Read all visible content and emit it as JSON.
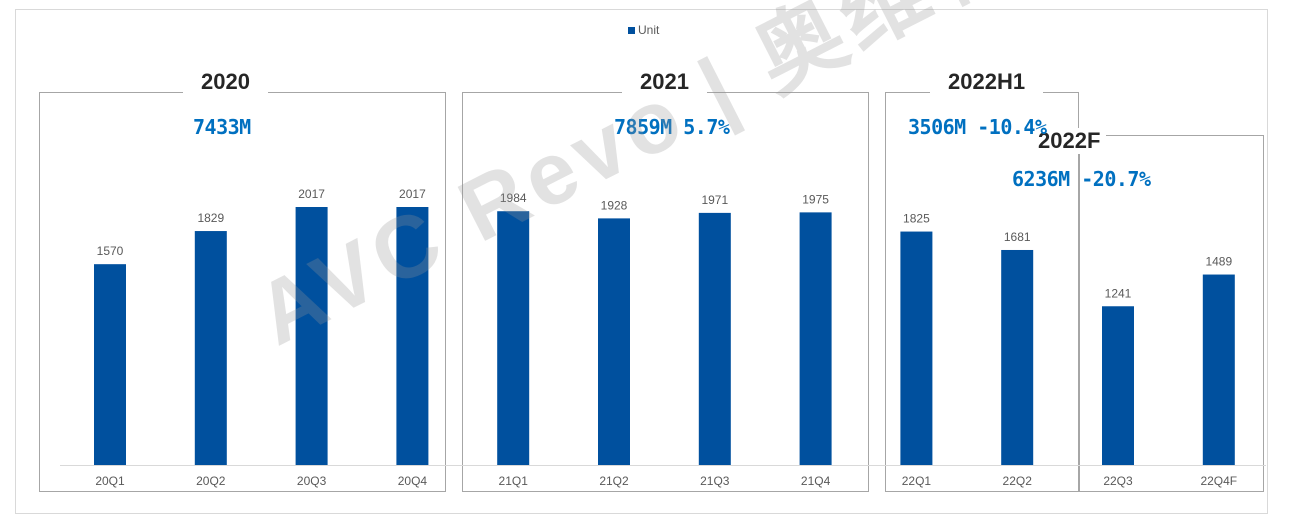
{
  "chart_data": {
    "type": "bar",
    "legend": {
      "label": "Unit",
      "placement": "top-center"
    },
    "categories": [
      "20Q1",
      "20Q2",
      "20Q3",
      "20Q4",
      "21Q1",
      "21Q2",
      "21Q3",
      "21Q4",
      "22Q1",
      "22Q2",
      "22Q3",
      "22Q4F"
    ],
    "series": [
      {
        "name": "Unit",
        "values": [
          1570,
          1829,
          2017,
          2017,
          1984,
          1928,
          1971,
          1975,
          1825,
          1681,
          1241,
          1489
        ],
        "color": "#00509e"
      }
    ],
    "ylim": [
      0,
      2500
    ],
    "grid": false,
    "groups": [
      {
        "title": "2020",
        "total": "7433M"
      },
      {
        "title": "2021",
        "total": "7859M 5.7%"
      },
      {
        "title": "2022H1",
        "total": "3506M -10.4%"
      },
      {
        "title": "2022F",
        "total": "6236M -20.7%"
      }
    ]
  },
  "watermark": "AVC Revo | 奥维睿沃"
}
